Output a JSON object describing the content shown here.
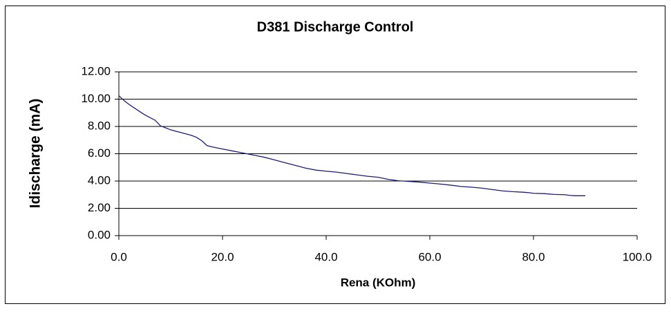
{
  "chart_data": {
    "type": "line",
    "title": "D381 Discharge Control",
    "x_label": "Rena (KOhm)",
    "y_label": "Idischarge (mA)",
    "x": [
      0,
      1,
      2,
      3,
      4,
      5,
      6,
      7,
      8,
      9,
      10,
      12,
      14,
      15,
      16,
      17,
      18,
      20,
      22,
      24,
      26,
      28,
      30,
      32,
      34,
      36,
      38,
      40,
      42,
      44,
      46,
      48,
      50,
      52,
      54,
      56,
      58,
      60,
      62,
      64,
      66,
      68,
      70,
      72,
      74,
      76,
      78,
      79,
      80,
      82,
      84,
      86,
      87,
      88,
      90
    ],
    "values": [
      10.25,
      9.9,
      9.6,
      9.35,
      9.1,
      8.85,
      8.65,
      8.45,
      8.05,
      7.9,
      7.75,
      7.55,
      7.35,
      7.2,
      6.95,
      6.6,
      6.5,
      6.35,
      6.2,
      6.05,
      5.9,
      5.75,
      5.55,
      5.35,
      5.15,
      4.95,
      4.8,
      4.72,
      4.65,
      4.55,
      4.45,
      4.35,
      4.28,
      4.12,
      4.02,
      3.97,
      3.92,
      3.85,
      3.78,
      3.7,
      3.6,
      3.55,
      3.48,
      3.38,
      3.28,
      3.22,
      3.18,
      3.15,
      3.1,
      3.08,
      3.02,
      3.0,
      2.95,
      2.92,
      2.92
    ],
    "color": "#1c1c78",
    "xlim": [
      0,
      100
    ],
    "xticks": [
      {
        "value": 0,
        "label": "0.0"
      },
      {
        "value": 20,
        "label": "20.0"
      },
      {
        "value": 40,
        "label": "40.0"
      },
      {
        "value": 60,
        "label": "60.0"
      },
      {
        "value": 80,
        "label": "80.0"
      },
      {
        "value": 100,
        "label": "100.0"
      }
    ],
    "ylim": [
      0,
      12
    ],
    "yticks": [
      {
        "value": 0,
        "label": "0.00"
      },
      {
        "value": 2,
        "label": "2.00"
      },
      {
        "value": 4,
        "label": "4.00"
      },
      {
        "value": 6,
        "label": "6.00"
      },
      {
        "value": 8,
        "label": "8.00"
      },
      {
        "value": 10,
        "label": "10.00"
      },
      {
        "value": 12,
        "label": "12.00"
      }
    ],
    "grid": true
  }
}
